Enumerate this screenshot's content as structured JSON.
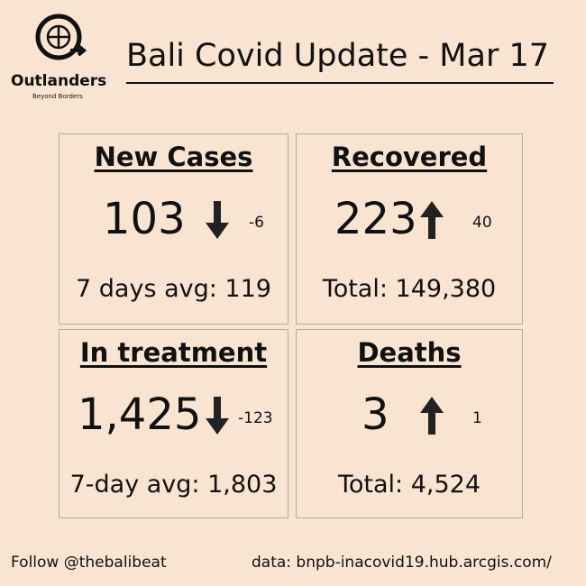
{
  "logo": {
    "name": "Outlanders",
    "tagline": "Beyond Borders"
  },
  "title": "Bali Covid Update - Mar 17",
  "cards": [
    {
      "heading": "New Cases",
      "value": "103",
      "change": "-6",
      "direction": "down",
      "footer": "7 days avg: 119"
    },
    {
      "heading": "Recovered",
      "value": "223",
      "change": "40",
      "direction": "up",
      "footer": "Total: 149,380"
    },
    {
      "heading": "In treatment",
      "value": "1,425",
      "change": "-123",
      "direction": "down",
      "footer": "7-day avg: 1,803"
    },
    {
      "heading": "Deaths",
      "value": "3",
      "change": "1",
      "direction": "up",
      "footer": "Total: 4,524"
    }
  ],
  "footer": {
    "follow": "Follow @thebalibeat",
    "source": "data: bnpb-inacovid19.hub.arcgis.com/"
  }
}
